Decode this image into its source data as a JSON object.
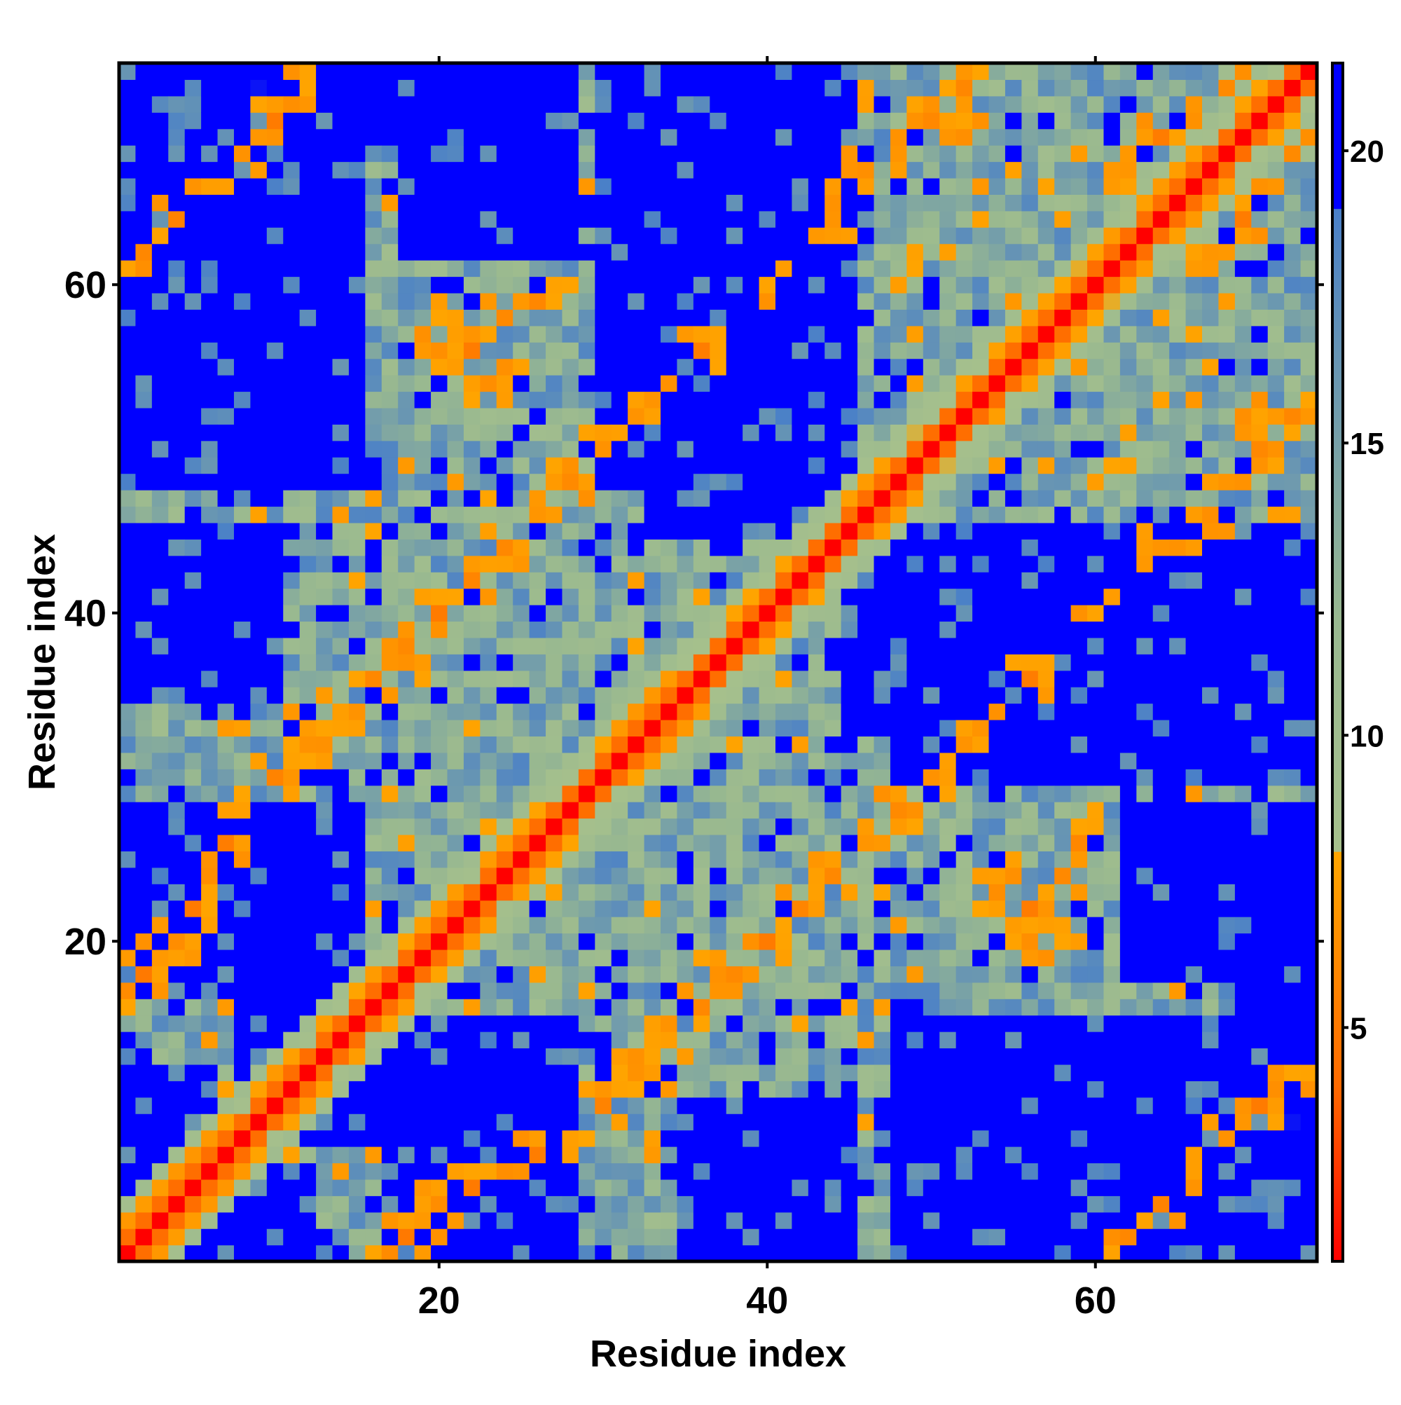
{
  "chart_data": {
    "type": "heatmap",
    "title": "",
    "xlabel": "Residue index",
    "ylabel": "Residue index",
    "n_residues": 73,
    "xlim": [
      1,
      73
    ],
    "ylim": [
      1,
      73
    ],
    "x_ticks": [
      20,
      40,
      60
    ],
    "y_ticks": [
      20,
      40,
      60
    ],
    "colorbar": {
      "ticks": [
        5,
        10,
        15,
        20
      ],
      "range": [
        1,
        21.5
      ],
      "stops": [
        {
          "value": 1,
          "color": "#ff0000"
        },
        {
          "value": 4,
          "color": "#ff6a00"
        },
        {
          "value": 8,
          "color": "#ffa500"
        },
        {
          "value": 8.01,
          "color": "#a6c08c"
        },
        {
          "value": 12,
          "color": "#98b890"
        },
        {
          "value": 19,
          "color": "#4a80c8"
        },
        {
          "value": 19.01,
          "color": "#0000ff"
        },
        {
          "value": 21.5,
          "color": "#0000ff"
        }
      ]
    },
    "contact_pairs": [
      [
        1,
        17
      ],
      [
        2,
        18
      ],
      [
        3,
        19
      ],
      [
        4,
        20
      ],
      [
        5,
        22
      ],
      [
        6,
        24
      ],
      [
        7,
        26
      ],
      [
        8,
        28
      ],
      [
        10,
        30
      ],
      [
        12,
        32
      ],
      [
        14,
        34
      ],
      [
        16,
        36
      ],
      [
        18,
        38
      ],
      [
        20,
        40
      ],
      [
        22,
        42
      ],
      [
        24,
        44
      ],
      [
        26,
        46
      ],
      [
        28,
        48
      ],
      [
        30,
        50
      ],
      [
        33,
        53
      ],
      [
        36,
        56
      ],
      [
        40,
        60
      ],
      [
        44,
        64
      ],
      [
        48,
        68
      ],
      [
        52,
        70
      ],
      [
        2,
        62
      ],
      [
        4,
        64
      ],
      [
        6,
        66
      ],
      [
        8,
        68
      ],
      [
        10,
        70
      ],
      [
        12,
        72
      ],
      [
        20,
        56
      ],
      [
        22,
        57
      ],
      [
        24,
        58
      ],
      [
        26,
        59
      ],
      [
        44,
        66
      ],
      [
        46,
        67
      ],
      [
        48,
        68
      ],
      [
        50,
        70
      ],
      [
        52,
        72
      ],
      [
        54,
        23
      ],
      [
        56,
        22
      ],
      [
        57,
        21
      ],
      [
        62,
        67
      ],
      [
        64,
        69
      ],
      [
        66,
        70
      ],
      [
        68,
        72
      ]
    ],
    "far_regions": [
      [
        5,
        15,
        48,
        73
      ],
      [
        30,
        45,
        48,
        73
      ],
      [
        10,
        22,
        8,
        14
      ],
      [
        17,
        28,
        1,
        15
      ],
      [
        45,
        65,
        33,
        44
      ],
      [
        50,
        62,
        5,
        15
      ],
      [
        60,
        70,
        1,
        8
      ],
      [
        35,
        45,
        1,
        10
      ],
      [
        18,
        28,
        62,
        73
      ],
      [
        1,
        6,
        1,
        12
      ],
      [
        68,
        73,
        1,
        25
      ],
      [
        1,
        4,
        48,
        73
      ]
    ]
  }
}
